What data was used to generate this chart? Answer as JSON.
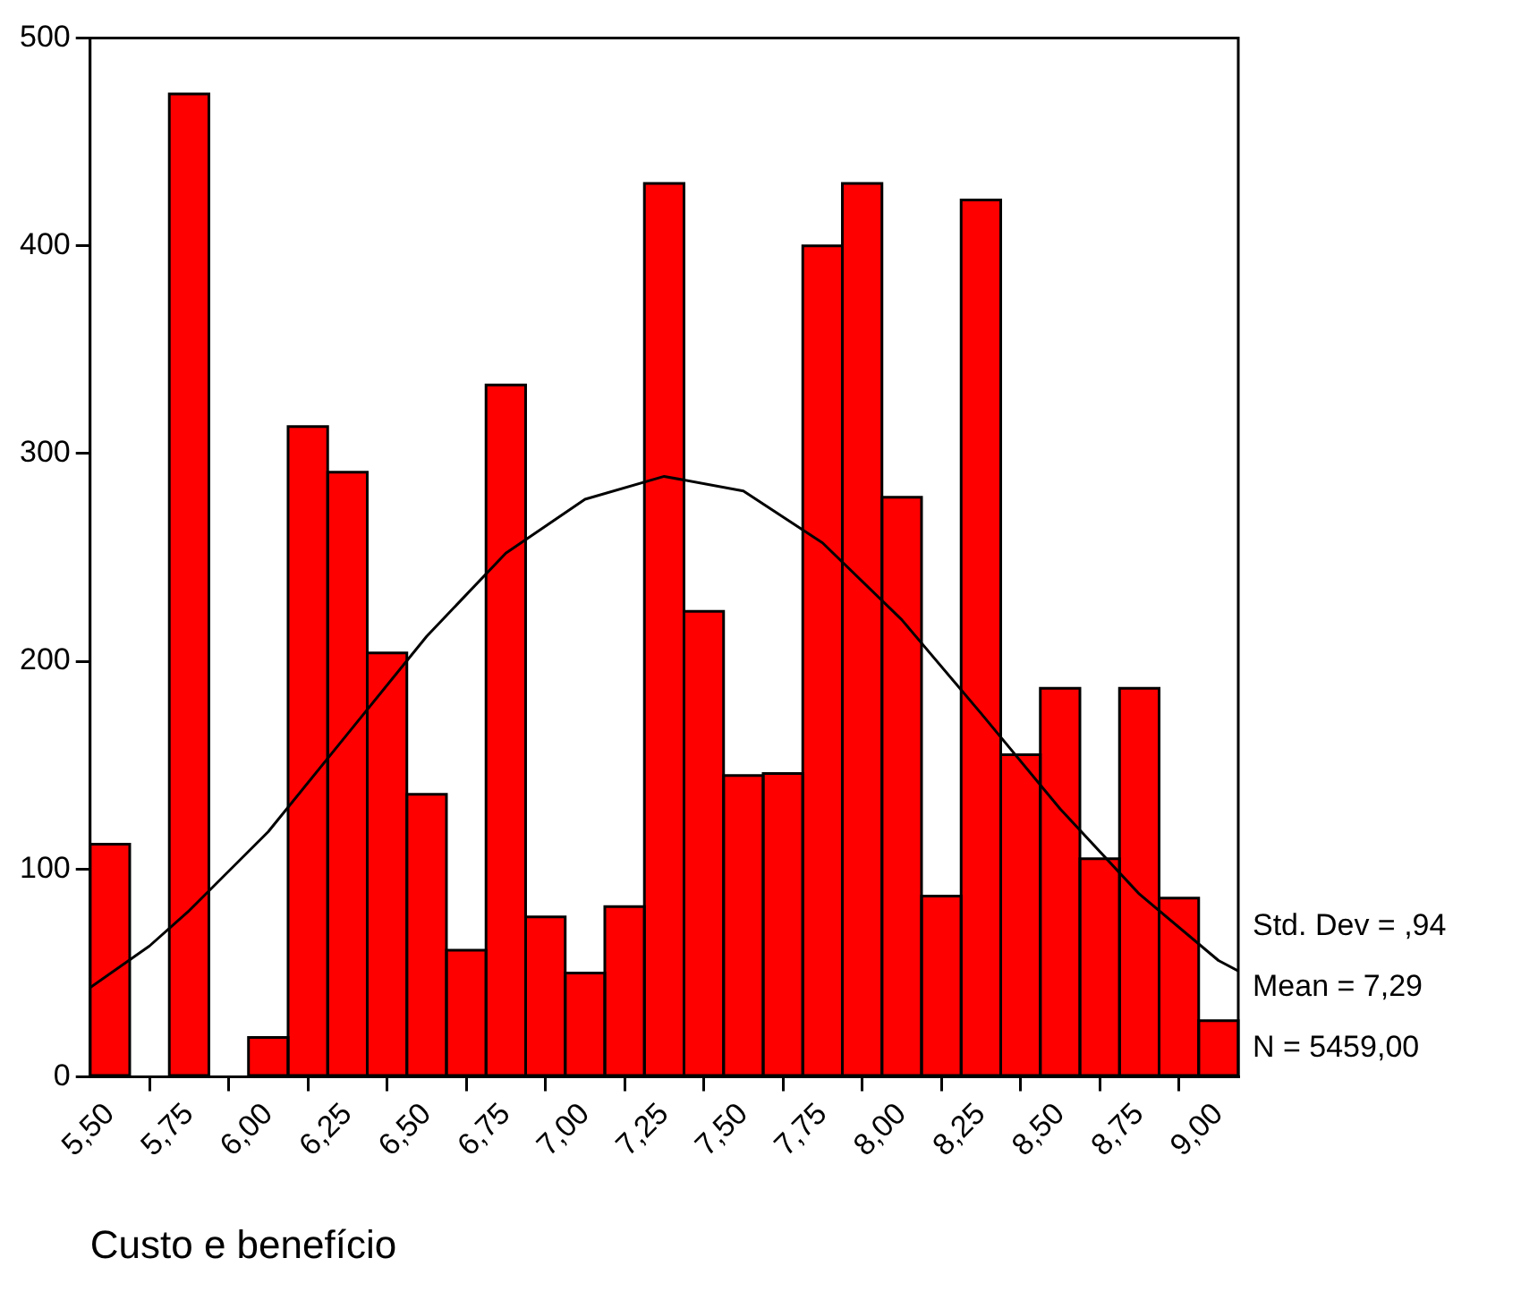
{
  "chart_data": {
    "type": "histogram",
    "xlabel": "Custo e benefício",
    "bins": [
      5.4375,
      5.5625,
      5.6875,
      5.8125,
      5.9375,
      6.0625,
      6.1875,
      6.3125,
      6.4375,
      6.5625,
      6.6875,
      6.8125,
      6.9375,
      7.0625,
      7.1875,
      7.3125,
      7.4375,
      7.5625,
      7.6875,
      7.8125,
      7.9375,
      8.0625,
      8.1875,
      8.3125,
      8.4375,
      8.5625,
      8.6875,
      8.8125,
      8.9375,
      9.0625
    ],
    "series": [
      {
        "color": "#ff0000",
        "values": [
          112,
          0,
          473,
          0,
          19,
          313,
          291,
          204,
          136,
          61,
          333,
          77,
          50,
          82,
          430,
          224,
          145,
          146,
          400,
          430,
          279,
          87,
          422,
          155,
          187,
          105,
          187,
          86,
          27
        ]
      },
      {
        "type": "line",
        "color": "#000000",
        "x": [
          5.4375,
          5.625,
          5.75,
          6.0,
          6.25,
          6.5,
          6.75,
          7.0,
          7.25,
          7.5,
          7.75,
          8.0,
          8.25,
          8.5,
          8.75,
          9.0,
          9.0625
        ],
        "values": [
          43,
          63,
          80,
          118,
          165,
          212,
          252,
          278,
          289,
          282,
          257,
          220,
          175,
          129,
          88,
          56,
          51
        ]
      }
    ],
    "xlim": [
      5.4375,
      9.0625
    ],
    "xticks": [
      {
        "value": 5.5,
        "label": "5,50"
      },
      {
        "value": 5.75,
        "label": "5,75"
      },
      {
        "value": 6.0,
        "label": "6,00"
      },
      {
        "value": 6.25,
        "label": "6,25"
      },
      {
        "value": 6.5,
        "label": "6,50"
      },
      {
        "value": 6.75,
        "label": "6,75"
      },
      {
        "value": 7.0,
        "label": "7,00"
      },
      {
        "value": 7.25,
        "label": "7,25"
      },
      {
        "value": 7.5,
        "label": "7,50"
      },
      {
        "value": 7.75,
        "label": "7,75"
      },
      {
        "value": 8.0,
        "label": "8,00"
      },
      {
        "value": 8.25,
        "label": "8,25"
      },
      {
        "value": 8.5,
        "label": "8,50"
      },
      {
        "value": 8.75,
        "label": "8,75"
      },
      {
        "value": 9.0,
        "label": "9,00"
      }
    ],
    "ylim": [
      0,
      500
    ],
    "yticks": [
      0,
      100,
      200,
      300,
      400,
      500
    ],
    "annotations": [
      "Std. Dev = ,94",
      "Mean = 7,29",
      "N = 5459,00"
    ],
    "grid": false,
    "legend": false,
    "marker": "none",
    "line_style": "solid"
  }
}
